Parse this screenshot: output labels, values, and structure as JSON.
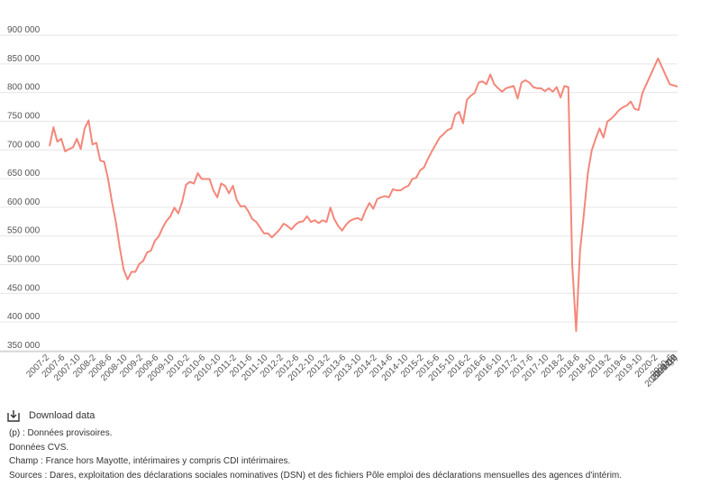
{
  "download_label": "Download data",
  "notes": [
    "(p) : Données provisoires.",
    "Données CVS.",
    "Champ : France hors Mayotte, intérimaires y compris CDI intérimaires.",
    "Sources : Dares, exploitation des déclarations sociales nominatives (DSN) et des fichiers Pôle emploi des déclarations mensuelles des agences d'intérim."
  ],
  "chart_data": {
    "type": "line",
    "title": "",
    "xlabel": "",
    "ylabel": "",
    "ylim": [
      350000,
      900000
    ],
    "y_ticks": [
      350000,
      400000,
      450000,
      500000,
      550000,
      600000,
      650000,
      700000,
      750000,
      800000,
      850000,
      900000
    ],
    "y_tick_labels": [
      "350 000",
      "400 000",
      "450 000",
      "500 000",
      "550 000",
      "600 000",
      "650 000",
      "700 000",
      "750 000",
      "800 000",
      "850 000",
      "900 000"
    ],
    "grid": true,
    "line_color": "#f4877a",
    "x_tick_labels": [
      "2007-2",
      "2007-6",
      "2007-10",
      "2008-2",
      "2008-6",
      "2008-10",
      "2009-2",
      "2009-6",
      "2009-10",
      "2010-2",
      "2010-6",
      "2010-10",
      "2011-2",
      "2011-6",
      "2011-10",
      "2012-2",
      "2012-6",
      "2012-10",
      "2013-2",
      "2013-6",
      "2013-10",
      "2014-2",
      "2014-6",
      "2014-10",
      "2015-2",
      "2015-6",
      "2015-10",
      "2016-2",
      "2016-6",
      "2016-10",
      "2017-2",
      "2017-6",
      "2017-10",
      "2018-2",
      "2018-6",
      "2018-10",
      "2019-2",
      "2019-6",
      "2019-10",
      "2020-2",
      "2020-6",
      "2020-10",
      "2021-2",
      "2021-6",
      "2021-10",
      "2022-2",
      "2022-6 (p)"
    ],
    "series": [
      {
        "values": [
          697000,
          730000,
          705000,
          710000,
          688000,
          692000,
          695000,
          710000,
          692000,
          728000,
          742000,
          700000,
          703000,
          672000,
          670000,
          640000,
          600000,
          565000,
          520000,
          482000,
          465000,
          478000,
          478000,
          492000,
          497000,
          512000,
          515000,
          532000,
          540000,
          555000,
          567000,
          575000,
          590000,
          580000,
          600000,
          630000,
          635000,
          632000,
          650000,
          640000,
          640000,
          640000,
          620000,
          608000,
          632000,
          628000,
          615000,
          628000,
          603000,
          592000,
          593000,
          583000,
          570000,
          565000,
          555000,
          545000,
          545000,
          538000,
          545000,
          552000,
          562000,
          558000,
          552000,
          560000,
          565000,
          566000,
          575000,
          565000,
          568000,
          563000,
          568000,
          565000,
          590000,
          570000,
          558000,
          550000,
          560000,
          567000,
          570000,
          572000,
          568000,
          585000,
          598000,
          588000,
          605000,
          608000,
          610000,
          608000,
          622000,
          620000,
          620000,
          625000,
          628000,
          640000,
          642000,
          655000,
          660000,
          675000,
          688000,
          700000,
          712000,
          718000,
          725000,
          728000,
          752000,
          757000,
          737000,
          778000,
          785000,
          790000,
          808000,
          810000,
          805000,
          822000,
          805000,
          798000,
          792000,
          798000,
          800000,
          802000,
          780000,
          808000,
          812000,
          808000,
          800000,
          798000,
          798000,
          793000,
          798000,
          792000,
          800000,
          782000,
          802000,
          800000,
          490000,
          375000,
          515000,
          580000,
          650000,
          690000,
          710000,
          728000,
          712000,
          740000,
          745000,
          752000,
          760000,
          765000,
          768000,
          775000,
          762000,
          760000,
          790000,
          805000,
          820000,
          835000,
          850000,
          835000,
          820000,
          805000,
          803000,
          801000
        ]
      }
    ]
  }
}
